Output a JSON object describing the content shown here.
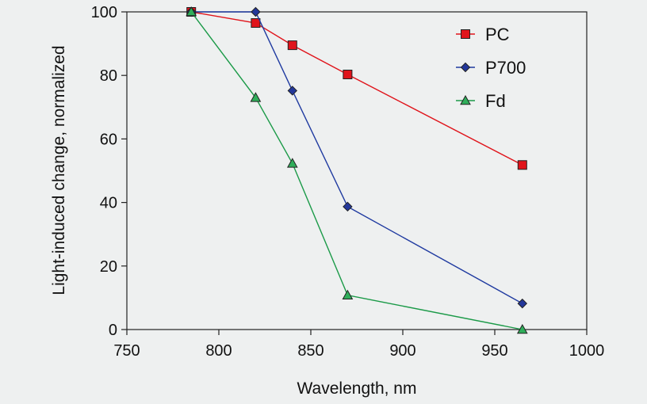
{
  "chart_data": {
    "type": "line",
    "xlabel": "Wavelength, nm",
    "ylabel": "Light-induced change, normalized",
    "xlim": [
      750,
      1000
    ],
    "ylim": [
      0,
      100
    ],
    "xticks": [
      750,
      800,
      850,
      900,
      950,
      1000
    ],
    "yticks": [
      0,
      20,
      40,
      60,
      80,
      100
    ],
    "grid": false,
    "legend_position": "top-right",
    "series": [
      {
        "name": "PC",
        "marker": "square",
        "color": "#e0141b",
        "fill": "#e0141b",
        "x": [
          785,
          820,
          840,
          870,
          965
        ],
        "y": [
          100,
          96.5,
          89.5,
          80.3,
          51.8
        ]
      },
      {
        "name": "P700",
        "marker": "diamond",
        "color": "#1f3aa0",
        "fill": "#23379a",
        "x": [
          785,
          820,
          840,
          870,
          965
        ],
        "y": [
          100,
          100,
          75.2,
          38.7,
          8.2
        ]
      },
      {
        "name": "Fd",
        "marker": "triangle",
        "color": "#1b9a48",
        "fill": "#2fae5a",
        "x": [
          785,
          820,
          840,
          870,
          965
        ],
        "y": [
          100,
          73,
          52.3,
          10.8,
          0
        ]
      }
    ]
  }
}
